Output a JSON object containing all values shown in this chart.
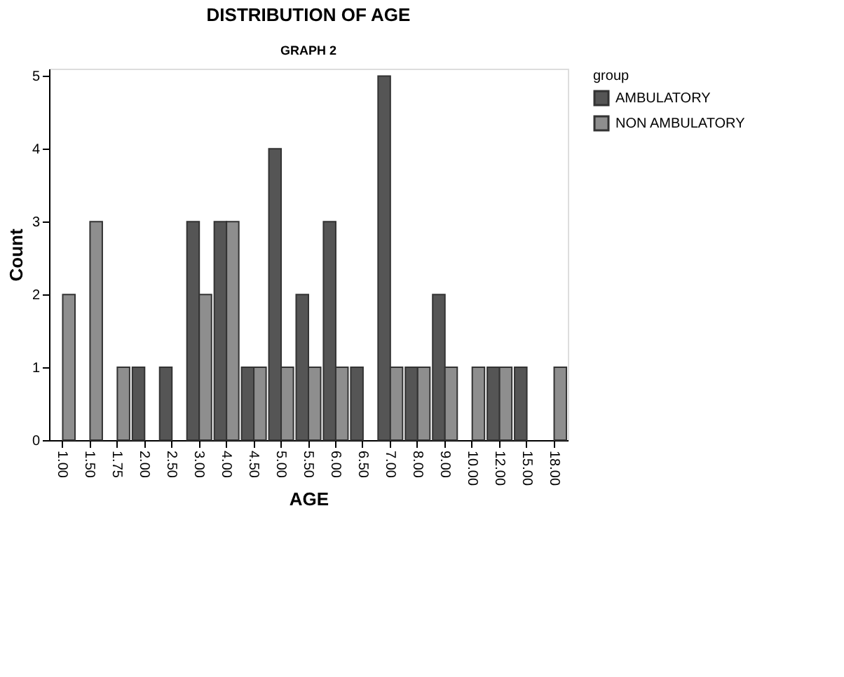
{
  "chart_data": {
    "type": "bar",
    "title": "DISTRIBUTION OF AGE",
    "subtitle": "GRAPH 2",
    "xlabel": "AGE",
    "ylabel": "Count",
    "legend_title": "group",
    "categories": [
      "1.00",
      "1.50",
      "1.75",
      "2.00",
      "2.50",
      "3.00",
      "4.00",
      "4.50",
      "5.00",
      "5.50",
      "6.00",
      "6.50",
      "7.00",
      "8.00",
      "9.00",
      "10.00",
      "12.00",
      "15.00",
      "18.00"
    ],
    "series": [
      {
        "name": "AMBULATORY",
        "color": "#555555",
        "values": [
          null,
          null,
          null,
          1,
          1,
          3,
          3,
          1,
          4,
          2,
          3,
          1,
          5,
          1,
          2,
          null,
          1,
          1,
          null
        ]
      },
      {
        "name": "NON AMBULATORY",
        "color": "#8e8e8e",
        "values": [
          2,
          3,
          1,
          null,
          null,
          2,
          3,
          1,
          1,
          1,
          1,
          null,
          1,
          1,
          1,
          1,
          1,
          null,
          1
        ]
      }
    ],
    "ylim": [
      0,
      5.1
    ],
    "yticks": [
      0,
      1,
      2,
      3,
      4,
      5
    ],
    "grid": false,
    "legend": "top right"
  }
}
